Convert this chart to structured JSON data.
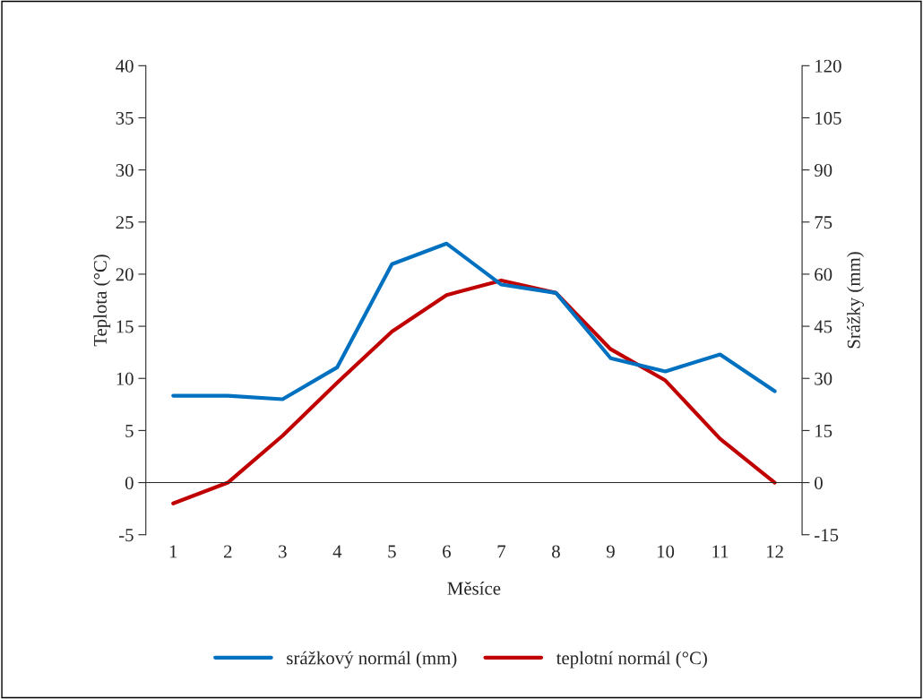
{
  "chart_data": {
    "type": "line",
    "xlabel": "Měsíce",
    "ylabel": "Teplota (°C)",
    "y2label": "Srážky (mm)",
    "categories": [
      "1",
      "2",
      "3",
      "4",
      "5",
      "6",
      "7",
      "8",
      "9",
      "10",
      "11",
      "12"
    ],
    "series": [
      {
        "name": "srážkový normál (mm)",
        "color": "#0070c0",
        "axis": "y2",
        "values": [
          25.0,
          25.0,
          24.0,
          33.2,
          62.9,
          68.8,
          57.0,
          54.6,
          35.8,
          32.0,
          36.9,
          26.3
        ]
      },
      {
        "name": "teplotní normál (°C)",
        "color": "#c00000",
        "values": [
          -2.0,
          0.0,
          4.5,
          9.6,
          14.5,
          18.0,
          19.4,
          18.2,
          12.8,
          9.8,
          4.2,
          0.0
        ]
      }
    ],
    "ylim": [
      -5,
      40
    ],
    "yticks": [
      -5,
      0,
      5,
      10,
      15,
      20,
      25,
      30,
      35,
      40
    ],
    "y2lim": [
      -15,
      120
    ],
    "y2ticks": [
      -15,
      0,
      15,
      30,
      45,
      60,
      75,
      90,
      105,
      120
    ],
    "legend": "bottom",
    "line_style": "solid",
    "marker": "none"
  }
}
